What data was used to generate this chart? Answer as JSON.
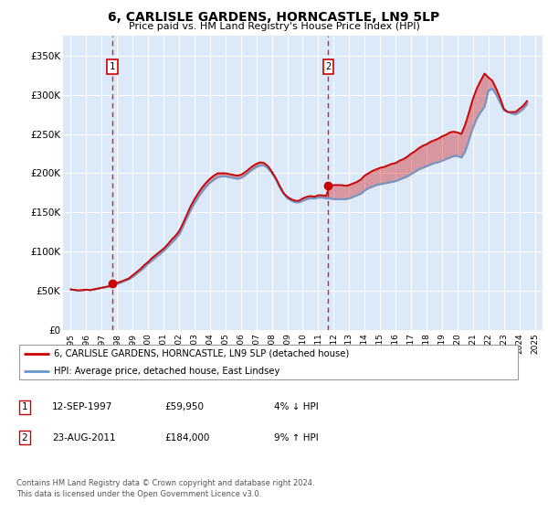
{
  "title": "6, CARLISLE GARDENS, HORNCASTLE, LN9 5LP",
  "subtitle": "Price paid vs. HM Land Registry's House Price Index (HPI)",
  "plot_bg_color": "#dce9f8",
  "ylabel_ticks": [
    "£0",
    "£50K",
    "£100K",
    "£150K",
    "£200K",
    "£250K",
    "£300K",
    "£350K"
  ],
  "ytick_values": [
    0,
    50000,
    100000,
    150000,
    200000,
    250000,
    300000,
    350000
  ],
  "ylim": [
    0,
    375000
  ],
  "xlim_start": 1994.5,
  "xlim_end": 2025.5,
  "xtick_years": [
    1995,
    1996,
    1997,
    1998,
    1999,
    2000,
    2001,
    2002,
    2003,
    2004,
    2005,
    2006,
    2007,
    2008,
    2009,
    2010,
    2011,
    2012,
    2013,
    2014,
    2015,
    2016,
    2017,
    2018,
    2019,
    2020,
    2021,
    2022,
    2023,
    2024,
    2025
  ],
  "hpi_color": "#6699cc",
  "price_color": "#cc0000",
  "sale1_x": 1997.7,
  "sale1_y": 59950,
  "sale1_label": "1",
  "sale1_date": "12-SEP-1997",
  "sale1_price": "£59,950",
  "sale1_hpi": "4% ↓ HPI",
  "sale2_x": 2011.65,
  "sale2_y": 184000,
  "sale2_label": "2",
  "sale2_date": "23-AUG-2011",
  "sale2_price": "£184,000",
  "sale2_hpi": "9% ↑ HPI",
  "legend_line1": "6, CARLISLE GARDENS, HORNCASTLE, LN9 5LP (detached house)",
  "legend_line2": "HPI: Average price, detached house, East Lindsey",
  "footer1": "Contains HM Land Registry data © Crown copyright and database right 2024.",
  "footer2": "This data is licensed under the Open Government Licence v3.0.",
  "hpi_data_x": [
    1995.0,
    1995.25,
    1995.5,
    1995.75,
    1996.0,
    1996.25,
    1996.5,
    1996.75,
    1997.0,
    1997.25,
    1997.5,
    1997.75,
    1998.0,
    1998.25,
    1998.5,
    1998.75,
    1999.0,
    1999.25,
    1999.5,
    1999.75,
    2000.0,
    2000.25,
    2000.5,
    2000.75,
    2001.0,
    2001.25,
    2001.5,
    2001.75,
    2002.0,
    2002.25,
    2002.5,
    2002.75,
    2003.0,
    2003.25,
    2003.5,
    2003.75,
    2004.0,
    2004.25,
    2004.5,
    2004.75,
    2005.0,
    2005.25,
    2005.5,
    2005.75,
    2006.0,
    2006.25,
    2006.5,
    2006.75,
    2007.0,
    2007.25,
    2007.5,
    2007.75,
    2008.0,
    2008.25,
    2008.5,
    2008.75,
    2009.0,
    2009.25,
    2009.5,
    2009.75,
    2010.0,
    2010.25,
    2010.5,
    2010.75,
    2011.0,
    2011.25,
    2011.5,
    2011.75,
    2012.0,
    2012.25,
    2012.5,
    2012.75,
    2013.0,
    2013.25,
    2013.5,
    2013.75,
    2014.0,
    2014.25,
    2014.5,
    2014.75,
    2015.0,
    2015.25,
    2015.5,
    2015.75,
    2016.0,
    2016.25,
    2016.5,
    2016.75,
    2017.0,
    2017.25,
    2017.5,
    2017.75,
    2018.0,
    2018.25,
    2018.5,
    2018.75,
    2019.0,
    2019.25,
    2019.5,
    2019.75,
    2020.0,
    2020.25,
    2020.5,
    2020.75,
    2021.0,
    2021.25,
    2021.5,
    2021.75,
    2022.0,
    2022.25,
    2022.5,
    2022.75,
    2023.0,
    2023.25,
    2023.5,
    2023.75,
    2024.0,
    2024.25,
    2024.5
  ],
  "hpi_data_y": [
    52000,
    51000,
    50500,
    51000,
    51500,
    51000,
    52000,
    53000,
    54000,
    55000,
    56000,
    57500,
    59000,
    61000,
    63000,
    65000,
    68000,
    72000,
    76000,
    80000,
    85000,
    89000,
    93000,
    97000,
    101000,
    106000,
    111000,
    116000,
    122000,
    132000,
    143000,
    153000,
    162000,
    170000,
    177000,
    183000,
    188000,
    192000,
    195000,
    196000,
    196000,
    195000,
    194000,
    193000,
    194000,
    197000,
    201000,
    205000,
    208000,
    210000,
    210000,
    206000,
    200000,
    192000,
    182000,
    174000,
    168000,
    165000,
    163000,
    163000,
    165000,
    167000,
    168000,
    168000,
    169000,
    169000,
    168000,
    168000,
    167000,
    167000,
    167000,
    167000,
    168000,
    170000,
    172000,
    174000,
    178000,
    181000,
    183000,
    185000,
    186000,
    187000,
    188000,
    189000,
    190000,
    192000,
    194000,
    196000,
    199000,
    202000,
    205000,
    207000,
    209000,
    211000,
    213000,
    214000,
    216000,
    218000,
    220000,
    222000,
    222000,
    220000,
    228000,
    243000,
    258000,
    270000,
    278000,
    285000,
    305000,
    308000,
    300000,
    290000,
    280000,
    278000,
    276000,
    275000,
    278000,
    282000,
    288000
  ],
  "price_data_x": [
    1995.0,
    1995.25,
    1995.5,
    1995.75,
    1996.0,
    1996.25,
    1996.5,
    1996.75,
    1997.0,
    1997.25,
    1997.5,
    1997.75,
    1998.0,
    1998.25,
    1998.5,
    1998.75,
    1999.0,
    1999.25,
    1999.5,
    1999.75,
    2000.0,
    2000.25,
    2000.5,
    2000.75,
    2001.0,
    2001.25,
    2001.5,
    2001.75,
    2002.0,
    2002.25,
    2002.5,
    2002.75,
    2003.0,
    2003.25,
    2003.5,
    2003.75,
    2004.0,
    2004.25,
    2004.5,
    2004.75,
    2005.0,
    2005.25,
    2005.5,
    2005.75,
    2006.0,
    2006.25,
    2006.5,
    2006.75,
    2007.0,
    2007.25,
    2007.5,
    2007.75,
    2008.0,
    2008.25,
    2008.5,
    2008.75,
    2009.0,
    2009.25,
    2009.5,
    2009.75,
    2010.0,
    2010.25,
    2010.5,
    2010.75,
    2011.0,
    2011.25,
    2011.5,
    2011.75,
    2012.0,
    2012.25,
    2012.5,
    2012.75,
    2013.0,
    2013.25,
    2013.5,
    2013.75,
    2014.0,
    2014.25,
    2014.5,
    2014.75,
    2015.0,
    2015.25,
    2015.5,
    2015.75,
    2016.0,
    2016.25,
    2016.5,
    2016.75,
    2017.0,
    2017.25,
    2017.5,
    2017.75,
    2018.0,
    2018.25,
    2018.5,
    2018.75,
    2019.0,
    2019.25,
    2019.5,
    2019.75,
    2020.0,
    2020.25,
    2020.5,
    2020.75,
    2021.0,
    2021.25,
    2021.5,
    2021.75,
    2022.0,
    2022.25,
    2022.5,
    2022.75,
    2023.0,
    2023.25,
    2023.5,
    2023.75,
    2024.0,
    2024.25,
    2024.5
  ],
  "price_data_y": [
    52000,
    51500,
    50800,
    51200,
    51800,
    51200,
    52200,
    53200,
    54200,
    55200,
    56200,
    59950,
    60500,
    62000,
    64000,
    66000,
    70000,
    74000,
    78000,
    83000,
    87000,
    92000,
    96000,
    100000,
    104000,
    109000,
    115000,
    120000,
    126000,
    136000,
    147000,
    158000,
    167000,
    175000,
    182000,
    188000,
    193000,
    197000,
    200000,
    200000,
    200000,
    199000,
    198000,
    197000,
    198000,
    201000,
    205000,
    209000,
    212000,
    214000,
    213000,
    209000,
    202000,
    194000,
    184000,
    175000,
    170000,
    167000,
    165000,
    165000,
    168000,
    170000,
    171000,
    170000,
    172000,
    172000,
    171000,
    184000,
    185000,
    185000,
    185000,
    184000,
    185000,
    187000,
    189000,
    192000,
    197000,
    200000,
    203000,
    205000,
    207000,
    208000,
    210000,
    212000,
    213000,
    216000,
    218000,
    221000,
    225000,
    228000,
    232000,
    235000,
    237000,
    240000,
    242000,
    244000,
    247000,
    249000,
    252000,
    253000,
    252000,
    250000,
    262000,
    278000,
    295000,
    308000,
    318000,
    327000,
    322000,
    318000,
    308000,
    296000,
    282000,
    278000,
    278000,
    278000,
    282000,
    286000,
    292000
  ]
}
